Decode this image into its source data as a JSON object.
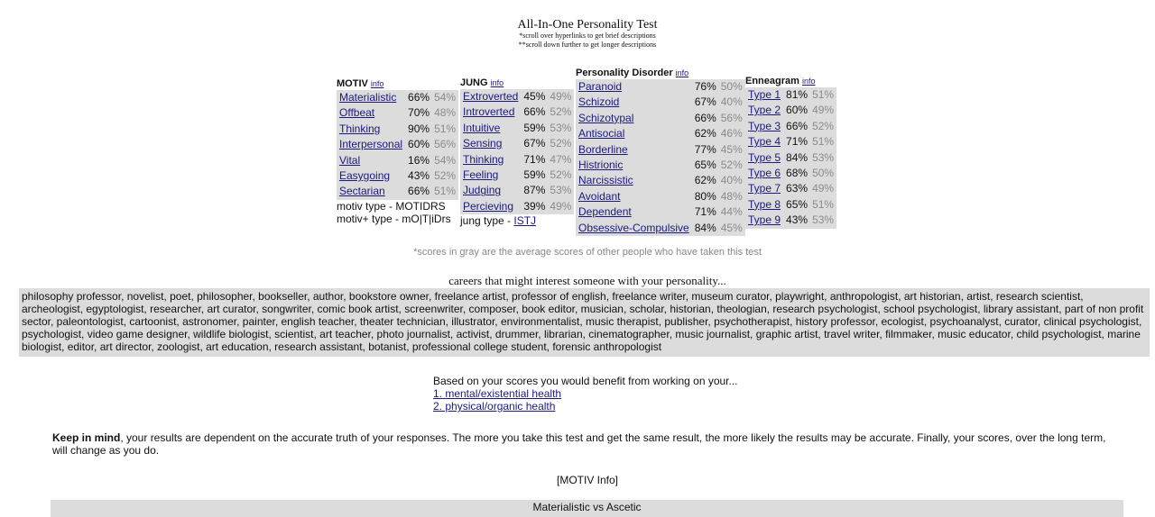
{
  "header": {
    "title": "All-In-One Personality Test",
    "subtitle1": "*scroll over hyperlinks to get brief descriptions",
    "subtitle2": "**scroll down further to get longer descriptions"
  },
  "motiv": {
    "title": "MOTIV",
    "info": "info",
    "rows": [
      {
        "label": "Materialistic",
        "value": "66%",
        "avg": "54%"
      },
      {
        "label": "Offbeat",
        "value": "70%",
        "avg": "48%"
      },
      {
        "label": "Thinking",
        "value": "90%",
        "avg": "51%"
      },
      {
        "label": "Interpersonal",
        "value": "60%",
        "avg": "56%"
      },
      {
        "label": "Vital",
        "value": "16%",
        "avg": "54%"
      },
      {
        "label": "Easygoing",
        "value": "43%",
        "avg": "52%"
      },
      {
        "label": "Sectarian",
        "value": "66%",
        "avg": "51%"
      }
    ],
    "type_line": "motiv type - MOTIDRS",
    "plus_line": "motiv+ type - mO|T|iDrs"
  },
  "jung": {
    "title": "JUNG",
    "info": "info",
    "rows": [
      {
        "label": "Extroverted",
        "value": "45%",
        "avg": "49%"
      },
      {
        "label": "Introverted",
        "value": "66%",
        "avg": "52%"
      },
      {
        "label": "Intuitive",
        "value": "59%",
        "avg": "53%"
      },
      {
        "label": "Sensing",
        "value": "67%",
        "avg": "52%"
      },
      {
        "label": "Thinking",
        "value": "71%",
        "avg": "47%"
      },
      {
        "label": "Feeling",
        "value": "59%",
        "avg": "52%"
      },
      {
        "label": "Judging",
        "value": "87%",
        "avg": "53%"
      },
      {
        "label": "Percieving",
        "value": "39%",
        "avg": "49%"
      }
    ],
    "type_prefix": "jung type - ",
    "type_value": "ISTJ"
  },
  "pd": {
    "title": "Personality Disorder",
    "info": "info",
    "rows": [
      {
        "label": "Paranoid",
        "value": "76%",
        "avg": "50%"
      },
      {
        "label": "Schizoid",
        "value": "67%",
        "avg": "40%"
      },
      {
        "label": "Schizotypal",
        "value": "66%",
        "avg": "56%"
      },
      {
        "label": "Antisocial",
        "value": "62%",
        "avg": "46%"
      },
      {
        "label": "Borderline",
        "value": "77%",
        "avg": "45%"
      },
      {
        "label": "Histrionic",
        "value": "65%",
        "avg": "52%"
      },
      {
        "label": "Narcissistic",
        "value": "62%",
        "avg": "40%"
      },
      {
        "label": "Avoidant",
        "value": "80%",
        "avg": "48%"
      },
      {
        "label": "Dependent",
        "value": "71%",
        "avg": "44%"
      },
      {
        "label": "Obsessive-Compulsive",
        "value": "84%",
        "avg": "45%"
      }
    ]
  },
  "enneagram": {
    "title": "Enneagram",
    "info": "info",
    "rows": [
      {
        "label": "Type 1",
        "value": "81%",
        "avg": "51%"
      },
      {
        "label": "Type 2",
        "value": "60%",
        "avg": "49%"
      },
      {
        "label": "Type 3",
        "value": "66%",
        "avg": "52%"
      },
      {
        "label": "Type 4",
        "value": "71%",
        "avg": "51%"
      },
      {
        "label": "Type 5",
        "value": "84%",
        "avg": "53%"
      },
      {
        "label": "Type 6",
        "value": "68%",
        "avg": "50%"
      },
      {
        "label": "Type 7",
        "value": "63%",
        "avg": "49%"
      },
      {
        "label": "Type 8",
        "value": "65%",
        "avg": "51%"
      },
      {
        "label": "Type 9",
        "value": "43%",
        "avg": "53%"
      }
    ]
  },
  "gray_note": "*scores in gray are the average scores of other people who have taken this test",
  "careers": {
    "title": "careers that might interest someone with your personality...",
    "text": "philosophy professor, novelist, poet, philosopher, bookseller, author, bookstore owner, freelance artist, professor of english, freelance writer, museum curator, playwright, anthropologist, art historian, artist, research scientist, archeologist, egyptologist, researcher, art curator, songwriter, comic book artist, screenwriter, composer, book editor, musician, scholar, historian, theologian, research psychologist, school psychologist, library assistant, part of non profit sector, paleontologist, cartoonist, astronomer, painter, english teacher, theater technician, illustrator, environmentalist, music therapist, publisher, psychotherapist, history professor, ecologist, psychoanalyst, curator, clinical psychologist, psychologist, video game designer, wildlife biologist, scientist, art teacher, photo journalist, activist, drummer, librarian, cinematographer, music journalist, graphic artist, travel writer, filmmaker, music educator, child psychologist, marine biologist, editor, art director, zoologist, art education, research assistant, botanist, professional college student, forensic anthropologist"
  },
  "benefit": {
    "intro": "Based on your scores you would benefit from working on your...",
    "item1": "1. mental/existential health",
    "item2": "2. physical/organic health"
  },
  "keep": {
    "bold": "Keep in mind",
    "text": ", your results are dependent on the accurate truth of your responses. The more you take this test and get the same result, the more likely the results may be accurate. Finally, your scores, over the long term, will change as you do."
  },
  "motiv_info": "[MOTIV Info]",
  "section_bar": "Materialistic vs Ascetic"
}
